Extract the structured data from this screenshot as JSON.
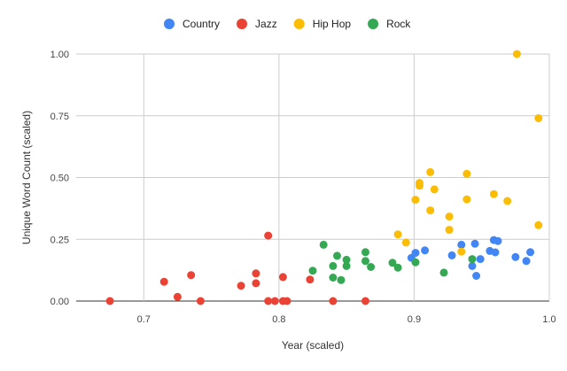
{
  "chart_data": {
    "type": "scatter",
    "xlabel": "Year (scaled)",
    "ylabel": "Unique Word Count (scaled)",
    "xlim": [
      0.65,
      1.0
    ],
    "ylim": [
      0.0,
      1.0
    ],
    "x_ticks": [
      0.7,
      0.8,
      0.9,
      1.0
    ],
    "x_tick_labels": [
      "0.7",
      "0.8",
      "0.9",
      "1.0"
    ],
    "y_ticks": [
      0.0,
      0.25,
      0.5,
      0.75,
      1.0
    ],
    "y_tick_labels": [
      "0.00",
      "0.25",
      "0.50",
      "0.75",
      "1.00"
    ],
    "grid": true,
    "legend_position": "top",
    "series": [
      {
        "name": "Country",
        "color": "#4285F4",
        "points": [
          [
            0.898,
            0.175
          ],
          [
            0.901,
            0.195
          ],
          [
            0.908,
            0.205
          ],
          [
            0.928,
            0.185
          ],
          [
            0.935,
            0.228
          ],
          [
            0.943,
            0.142
          ],
          [
            0.945,
            0.232
          ],
          [
            0.946,
            0.102
          ],
          [
            0.949,
            0.17
          ],
          [
            0.956,
            0.203
          ],
          [
            0.959,
            0.247
          ],
          [
            0.96,
            0.197
          ],
          [
            0.962,
            0.243
          ],
          [
            0.975,
            0.178
          ],
          [
            0.983,
            0.162
          ],
          [
            0.986,
            0.198
          ]
        ]
      },
      {
        "name": "Jazz",
        "color": "#EA4335",
        "points": [
          [
            0.675,
            0.0
          ],
          [
            0.715,
            0.078
          ],
          [
            0.725,
            0.017
          ],
          [
            0.735,
            0.105
          ],
          [
            0.742,
            0.0
          ],
          [
            0.772,
            0.062
          ],
          [
            0.783,
            0.112
          ],
          [
            0.783,
            0.072
          ],
          [
            0.792,
            0.265
          ],
          [
            0.792,
            0.0
          ],
          [
            0.797,
            0.0
          ],
          [
            0.803,
            0.097
          ],
          [
            0.803,
            0.0
          ],
          [
            0.806,
            0.0
          ],
          [
            0.823,
            0.087
          ],
          [
            0.84,
            0.0
          ],
          [
            0.864,
            0.0
          ]
        ]
      },
      {
        "name": "Hip Hop",
        "color": "#FBBC04",
        "points": [
          [
            0.888,
            0.27
          ],
          [
            0.894,
            0.237
          ],
          [
            0.901,
            0.41
          ],
          [
            0.904,
            0.478
          ],
          [
            0.904,
            0.467
          ],
          [
            0.912,
            0.522
          ],
          [
            0.912,
            0.367
          ],
          [
            0.915,
            0.452
          ],
          [
            0.926,
            0.342
          ],
          [
            0.926,
            0.288
          ],
          [
            0.935,
            0.2
          ],
          [
            0.939,
            0.515
          ],
          [
            0.939,
            0.412
          ],
          [
            0.959,
            0.433
          ],
          [
            0.969,
            0.405
          ],
          [
            0.976,
            1.0
          ],
          [
            0.992,
            0.74
          ],
          [
            0.992,
            0.307
          ]
        ]
      },
      {
        "name": "Rock",
        "color": "#34A853",
        "points": [
          [
            0.825,
            0.123
          ],
          [
            0.833,
            0.228
          ],
          [
            0.84,
            0.142
          ],
          [
            0.84,
            0.095
          ],
          [
            0.843,
            0.183
          ],
          [
            0.846,
            0.085
          ],
          [
            0.85,
            0.142
          ],
          [
            0.85,
            0.167
          ],
          [
            0.864,
            0.198
          ],
          [
            0.864,
            0.162
          ],
          [
            0.868,
            0.138
          ],
          [
            0.884,
            0.155
          ],
          [
            0.888,
            0.135
          ],
          [
            0.901,
            0.157
          ],
          [
            0.922,
            0.115
          ],
          [
            0.943,
            0.17
          ]
        ]
      }
    ]
  }
}
